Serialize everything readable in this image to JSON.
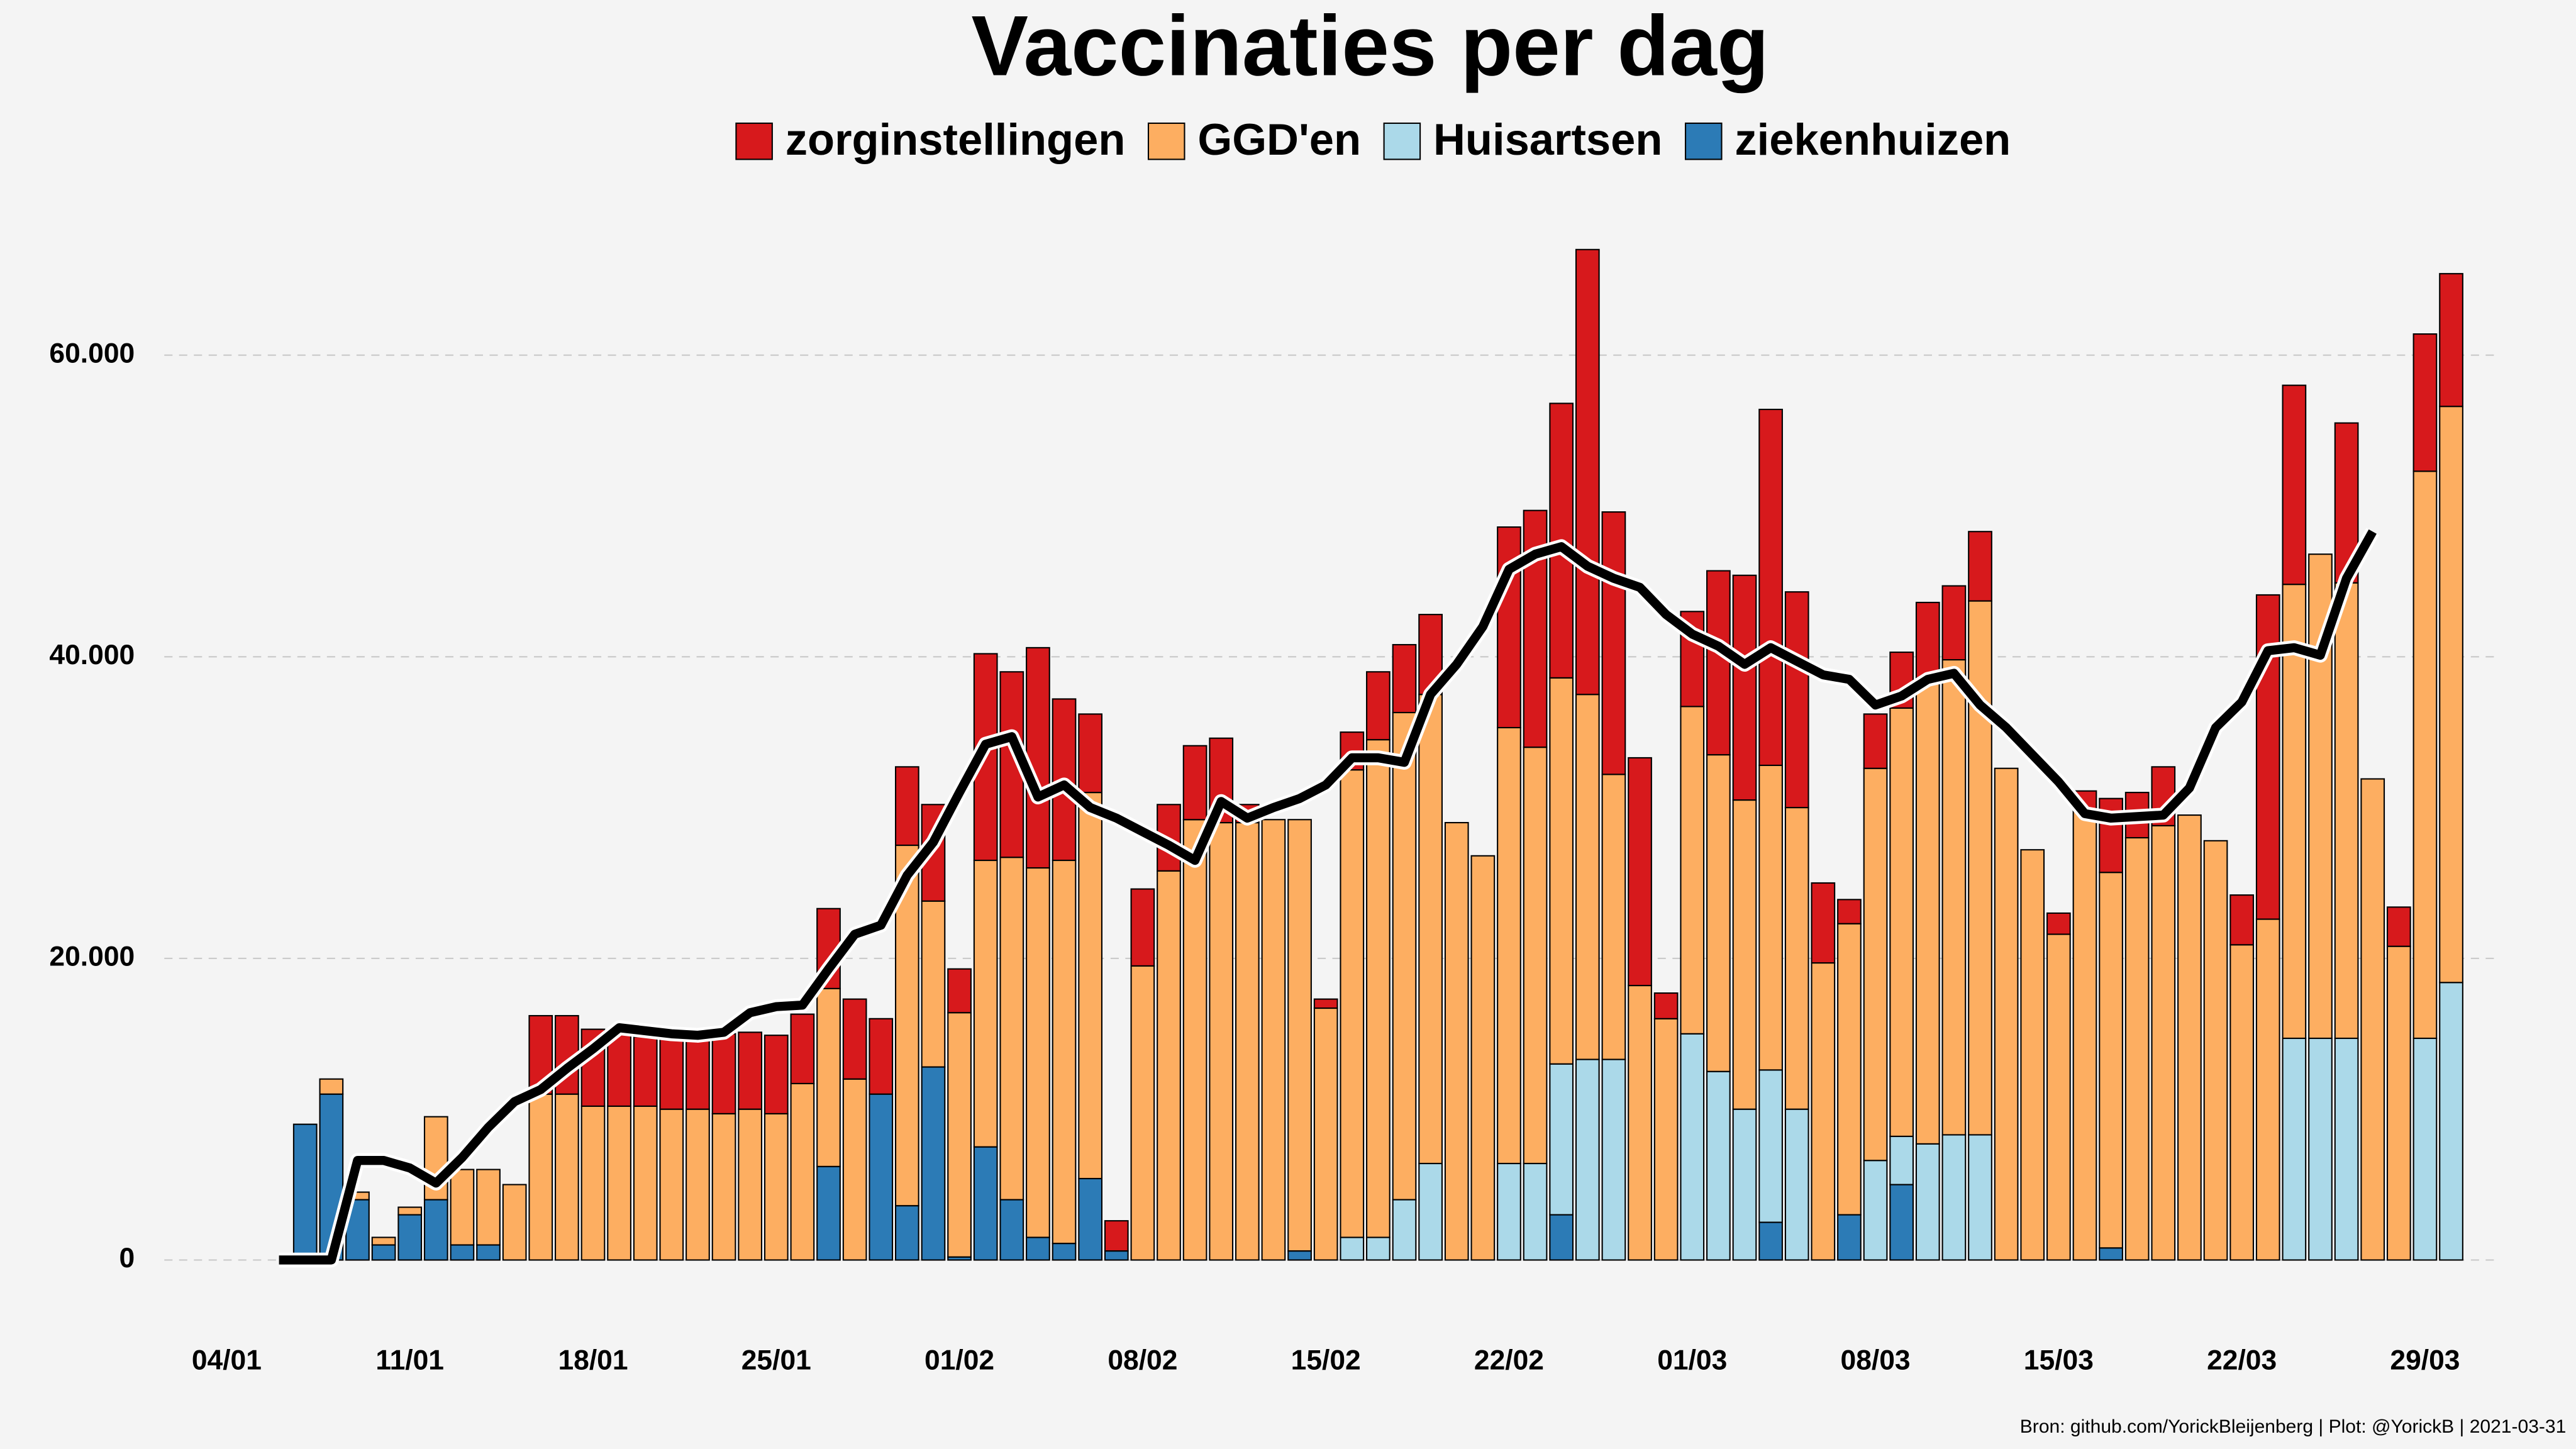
{
  "chart_data": {
    "type": "stacked_bar",
    "title": "Vaccinaties per dag",
    "caption": "Bron: github.com/YorickBleijenberg | Plot: @YorickB  |  2021-03-31",
    "categories": [
      "04/01",
      null,
      null,
      null,
      null,
      null,
      null,
      "11/01",
      null,
      null,
      null,
      null,
      null,
      null,
      "18/01",
      null,
      null,
      null,
      null,
      null,
      null,
      "25/01",
      null,
      null,
      null,
      null,
      null,
      null,
      "01/02",
      null,
      null,
      null,
      null,
      null,
      null,
      "08/02",
      null,
      null,
      null,
      null,
      null,
      null,
      "15/02",
      null,
      null,
      null,
      null,
      null,
      null,
      "22/02",
      null,
      null,
      null,
      null,
      null,
      null,
      "01/03",
      null,
      null,
      null,
      null,
      null,
      null,
      "08/03",
      null,
      null,
      null,
      null,
      null,
      null,
      "15/03",
      null,
      null,
      null,
      null,
      null,
      null,
      "22/03",
      null,
      null,
      null,
      null,
      null,
      null,
      "29/03",
      null
    ],
    "series": [
      {
        "name": "zorginstellingen",
        "color": "#d7191c",
        "values": [
          0,
          0,
          0,
          0,
          0,
          0,
          0,
          0,
          0,
          0,
          0,
          0,
          5200,
          5200,
          5100,
          4800,
          4600,
          4800,
          4800,
          5300,
          5100,
          5200,
          4600,
          5300,
          5300,
          5000,
          5200,
          6400,
          2900,
          13700,
          12300,
          14600,
          10700,
          5200,
          2000,
          5100,
          4400,
          4900,
          5600,
          1200,
          0,
          0,
          600,
          2500,
          4500,
          4500,
          5300,
          0,
          0,
          13300,
          15700,
          18200,
          29500,
          17400,
          15100,
          1700,
          6300,
          12200,
          14900,
          23600,
          14300,
          5300,
          1600,
          3600,
          3700,
          5200,
          4900,
          4600,
          0,
          0,
          1400,
          1300,
          4900,
          3000,
          3900,
          0,
          0,
          3300,
          21500,
          13200,
          0,
          10600,
          0,
          2600,
          9100,
          8800
        ]
      },
      {
        "name": "GGD'en",
        "color": "#fdae61",
        "values": [
          0,
          0,
          0,
          0,
          1000,
          500,
          500,
          500,
          5500,
          5000,
          5000,
          5000,
          11000,
          11000,
          10200,
          10200,
          10200,
          10000,
          10000,
          9700,
          10000,
          9700,
          11700,
          11800,
          12000,
          0,
          23900,
          11000,
          16200,
          19000,
          22700,
          24500,
          25400,
          25600,
          0,
          19500,
          25800,
          29200,
          29000,
          29000,
          29200,
          28600,
          16700,
          31000,
          33000,
          32300,
          31100,
          29000,
          26800,
          28900,
          27600,
          25600,
          24200,
          18900,
          18200,
          16000,
          21700,
          21000,
          20500,
          20200,
          20000,
          19700,
          19300,
          26000,
          28400,
          30700,
          31500,
          35400,
          32600,
          27200,
          21600,
          29800,
          24900,
          28000,
          28800,
          29500,
          27800,
          20900,
          22600,
          30100,
          32100,
          30200,
          31900,
          20800,
          37600,
          38200
        ]
      },
      {
        "name": "Huisartsen",
        "color": "#abd9e9",
        "values": [
          0,
          0,
          0,
          0,
          0,
          0,
          0,
          0,
          0,
          0,
          0,
          0,
          0,
          0,
          0,
          0,
          0,
          0,
          0,
          0,
          0,
          0,
          0,
          0,
          0,
          0,
          0,
          0,
          0,
          0,
          0,
          0,
          0,
          0,
          0,
          0,
          0,
          0,
          0,
          0,
          0,
          0,
          0,
          1500,
          1500,
          4000,
          6400,
          0,
          0,
          6400,
          6400,
          10000,
          13300,
          13300,
          0,
          0,
          15000,
          12500,
          10000,
          10100,
          10000,
          0,
          0,
          6600,
          3200,
          7700,
          8300,
          8300,
          0,
          0,
          0,
          0,
          0,
          0,
          0,
          0,
          0,
          0,
          0,
          14700,
          14700,
          14700,
          0,
          0,
          14700,
          18400
        ]
      },
      {
        "name": "ziekenhuizen",
        "color": "#2c7bb6",
        "values": [
          0,
          0,
          0,
          9000,
          11000,
          4000,
          1000,
          3000,
          4000,
          1000,
          1000,
          0,
          0,
          0,
          0,
          0,
          0,
          0,
          0,
          0,
          0,
          0,
          0,
          6200,
          0,
          11000,
          3600,
          12800,
          200,
          7500,
          4000,
          1500,
          1100,
          5400,
          600,
          0,
          0,
          0,
          0,
          0,
          0,
          600,
          0,
          0,
          0,
          0,
          0,
          0,
          0,
          0,
          0,
          3000,
          0,
          0,
          0,
          0,
          0,
          0,
          0,
          2500,
          0,
          0,
          3000,
          0,
          5000,
          0,
          0,
          0,
          0,
          0,
          0,
          0,
          800,
          0,
          0,
          0,
          0,
          0,
          0,
          0,
          0,
          0,
          0,
          0,
          0,
          0
        ]
      }
    ],
    "line": {
      "color": "#000000",
      "values": [
        null,
        null,
        0,
        0,
        0,
        6600,
        6600,
        6100,
        5100,
        6800,
        8800,
        10500,
        11300,
        12700,
        14000,
        15400,
        15200,
        15000,
        14900,
        15100,
        16400,
        16800,
        16900,
        19300,
        21600,
        22200,
        25500,
        27700,
        31000,
        34200,
        34700,
        30700,
        31500,
        30000,
        29300,
        28400,
        27500,
        26500,
        30400,
        29300,
        30000,
        30600,
        31500,
        33300,
        33300,
        33000,
        37500,
        39500,
        42000,
        45800,
        46800,
        47300,
        46000,
        45200,
        44600,
        42800,
        41500,
        40700,
        39500,
        40600,
        39700,
        38800,
        38500,
        36800,
        37400,
        38500,
        38900,
        36800,
        35300,
        33500,
        31700,
        29600,
        29300,
        29400,
        29500,
        31300,
        35300,
        37000,
        40400,
        40600,
        40100,
        45200,
        48300,
        null,
        null,
        null
      ]
    },
    "ylim": [
      -3000,
      72000
    ],
    "yticks": [
      0,
      {
        "value": 20000,
        "label": "20.000"
      },
      {
        "value": 40000,
        "label": "40.000"
      },
      {
        "value": 60000,
        "label": "60.000"
      }
    ],
    "grid": true,
    "legend": "top"
  }
}
